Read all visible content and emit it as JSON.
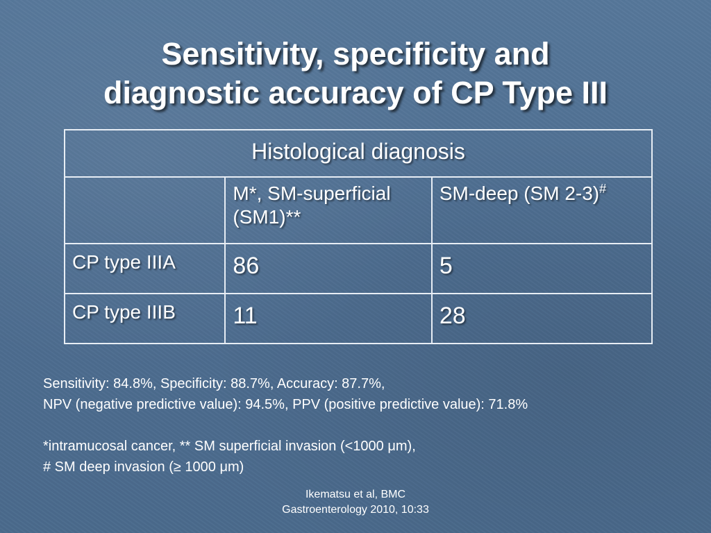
{
  "title": {
    "line1": "Sensitivity, specificity and",
    "line2": "diagnostic accuracy of CP Type III"
  },
  "table": {
    "header": "Histological diagnosis",
    "col1_heading_line1": "M*, SM-superficial",
    "col1_heading_line2": "(SM1)**",
    "col2_heading": "SM-deep (SM 2-3)",
    "col2_heading_sup": "#",
    "rows": [
      {
        "label": "CP type IIIA",
        "values": [
          "86",
          "5"
        ]
      },
      {
        "label": "CP type IIIB",
        "values": [
          "11",
          "28"
        ]
      }
    ]
  },
  "notes": {
    "line1": "Sensitivity: 84.8%, Specificity: 88.7%, Accuracy: 87.7%,",
    "line2": "NPV (negative predictive value): 94.5%, PPV (positive predictive value): 71.8%",
    "line3": "*intramucosal cancer, ** SM superficial invasion (<1000 μm),",
    "line4": "# SM deep invasion (≥ 1000 μm)"
  },
  "citation": {
    "line1": "Ikematsu et al, BMC",
    "line2": "Gastroenterology 2010, 10:33"
  }
}
